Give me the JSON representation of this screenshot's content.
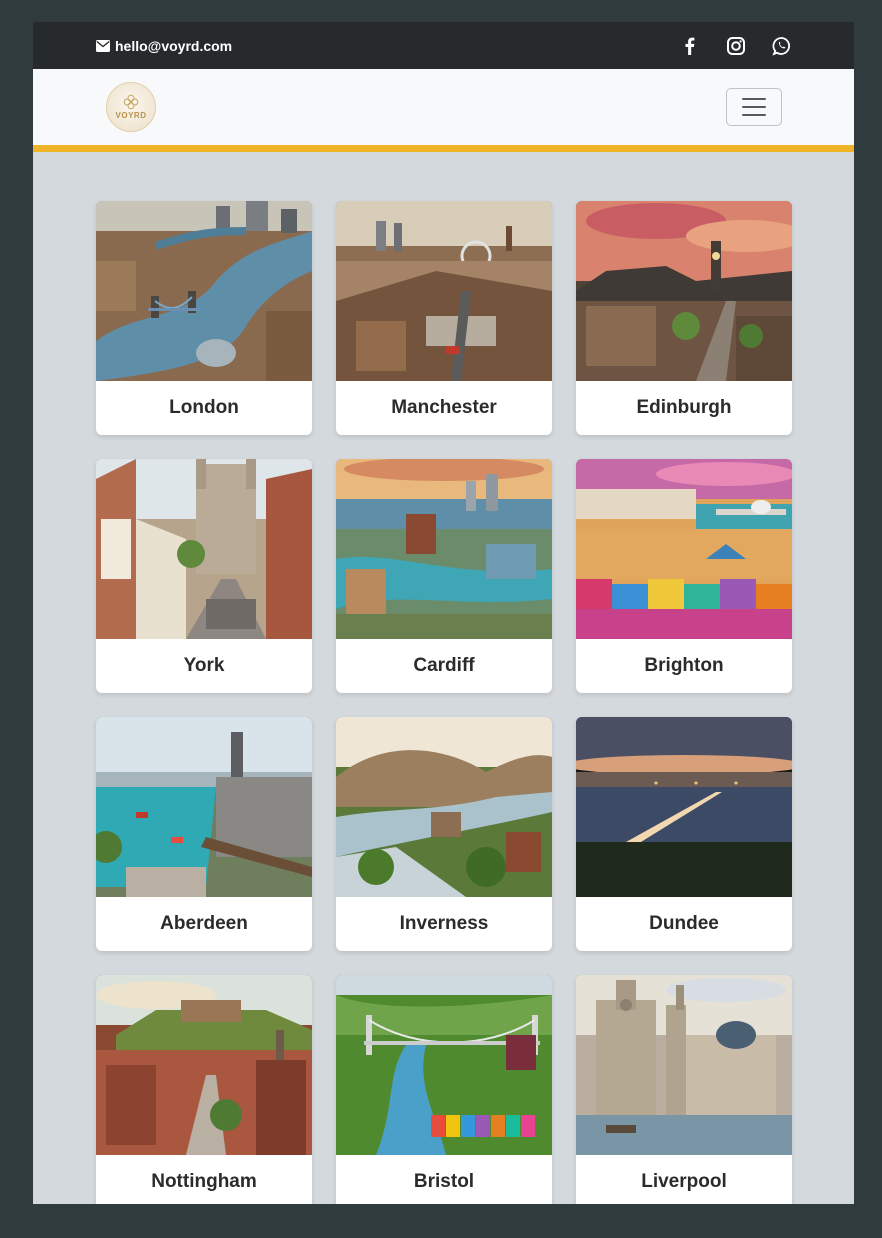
{
  "topbar": {
    "email": "hello@voyrd.com",
    "icons": [
      "envelope-icon",
      "facebook-icon",
      "instagram-icon",
      "whatsapp-icon"
    ]
  },
  "navbar": {
    "logo_text": "VOYRD",
    "menu_icon": "hamburger-menu-icon"
  },
  "colors": {
    "topbar_bg": "#262a2c",
    "navbar_bg": "#f8f9fa",
    "accent": "#f0b429",
    "page_bg": "#d3d9dd",
    "outer_bg": "#2f3b3d"
  },
  "cities": [
    {
      "name": "London"
    },
    {
      "name": "Manchester"
    },
    {
      "name": "Edinburgh"
    },
    {
      "name": "York"
    },
    {
      "name": "Cardiff"
    },
    {
      "name": "Brighton"
    },
    {
      "name": "Aberdeen"
    },
    {
      "name": "Inverness"
    },
    {
      "name": "Dundee"
    },
    {
      "name": "Nottingham"
    },
    {
      "name": "Bristol"
    },
    {
      "name": "Liverpool"
    }
  ]
}
